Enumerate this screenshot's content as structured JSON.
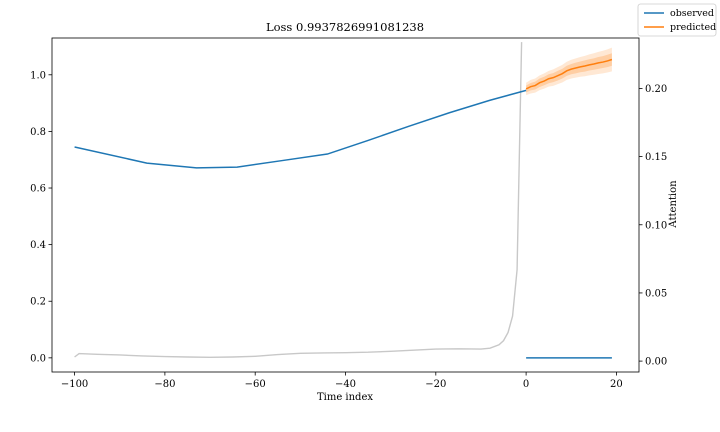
{
  "chart_data": {
    "type": "line",
    "title": "Loss 0.9937826991081238",
    "xlabel": "Time index",
    "ylabel": "",
    "y2label": "Attention",
    "xlim": [
      -105,
      25
    ],
    "ylim": [
      -0.05,
      1.13
    ],
    "y2lim": [
      -0.008,
      0.237
    ],
    "xticks": [
      -100,
      -80,
      -60,
      -40,
      -20,
      0,
      20
    ],
    "yticks": [
      0.0,
      0.2,
      0.4,
      0.6,
      0.8,
      1.0
    ],
    "y2ticks": [
      0.0,
      0.05,
      0.1,
      0.15,
      0.2
    ],
    "x_tick_labels": [
      "−100",
      "−80",
      "−60",
      "−40",
      "−20",
      "0",
      "20"
    ],
    "y_tick_labels": [
      "0.0",
      "0.2",
      "0.4",
      "0.6",
      "0.8",
      "1.0"
    ],
    "y2_tick_labels": [
      "0.00",
      "0.05",
      "0.10",
      "0.15",
      "0.20"
    ],
    "legend": {
      "placement": "top-right",
      "entries": [
        "observed",
        "predicted"
      ]
    },
    "colors": {
      "observed": "#1f77b4",
      "predicted": "#ff7f0e",
      "attention": "#c8c8c8"
    },
    "series": [
      {
        "name": "observed",
        "axis": "left",
        "x": [
          -100,
          -84,
          -73,
          -64,
          -54,
          -44,
          -35,
          -26,
          -17,
          -8,
          0
        ],
        "y": [
          0.745,
          0.688,
          0.671,
          0.674,
          0.697,
          0.72,
          0.768,
          0.818,
          0.866,
          0.91,
          0.945
        ]
      },
      {
        "name": "observed",
        "axis": "left",
        "x": [
          0,
          19
        ],
        "y": [
          0.0,
          0.0
        ]
      },
      {
        "name": "predicted",
        "axis": "left",
        "x": [
          0,
          1,
          2,
          3,
          4,
          5,
          6,
          7,
          8,
          9,
          10,
          11,
          12,
          13,
          14,
          15,
          16,
          17,
          18,
          19
        ],
        "y": [
          0.95,
          0.958,
          0.962,
          0.972,
          0.978,
          0.986,
          0.99,
          0.997,
          1.004,
          1.014,
          1.02,
          1.024,
          1.028,
          1.031,
          1.035,
          1.038,
          1.042,
          1.045,
          1.049,
          1.054
        ],
        "band_inner": [
          0.012,
          0.013,
          0.014,
          0.015,
          0.015,
          0.016,
          0.016,
          0.017,
          0.017,
          0.018,
          0.018,
          0.019,
          0.019,
          0.02,
          0.02,
          0.02,
          0.021,
          0.021,
          0.022,
          0.022
        ],
        "band_outer": [
          0.022,
          0.024,
          0.025,
          0.026,
          0.027,
          0.028,
          0.029,
          0.03,
          0.031,
          0.032,
          0.033,
          0.034,
          0.035,
          0.036,
          0.037,
          0.038,
          0.039,
          0.04,
          0.041,
          0.042
        ]
      },
      {
        "name": "attention",
        "axis": "right",
        "x": [
          -100,
          -99,
          -95,
          -90,
          -85,
          -80,
          -75,
          -70,
          -65,
          -60,
          -55,
          -50,
          -45,
          -40,
          -35,
          -30,
          -25,
          -20,
          -15,
          -10,
          -8,
          -6,
          -5,
          -4,
          -3,
          -2,
          -1
        ],
        "y": [
          0.003,
          0.0055,
          0.005,
          0.0045,
          0.0038,
          0.0033,
          0.003,
          0.0028,
          0.003,
          0.0035,
          0.0048,
          0.0057,
          0.006,
          0.0062,
          0.0065,
          0.0072,
          0.008,
          0.0088,
          0.009,
          0.0088,
          0.0095,
          0.012,
          0.015,
          0.021,
          0.033,
          0.067,
          0.234
        ]
      }
    ]
  }
}
